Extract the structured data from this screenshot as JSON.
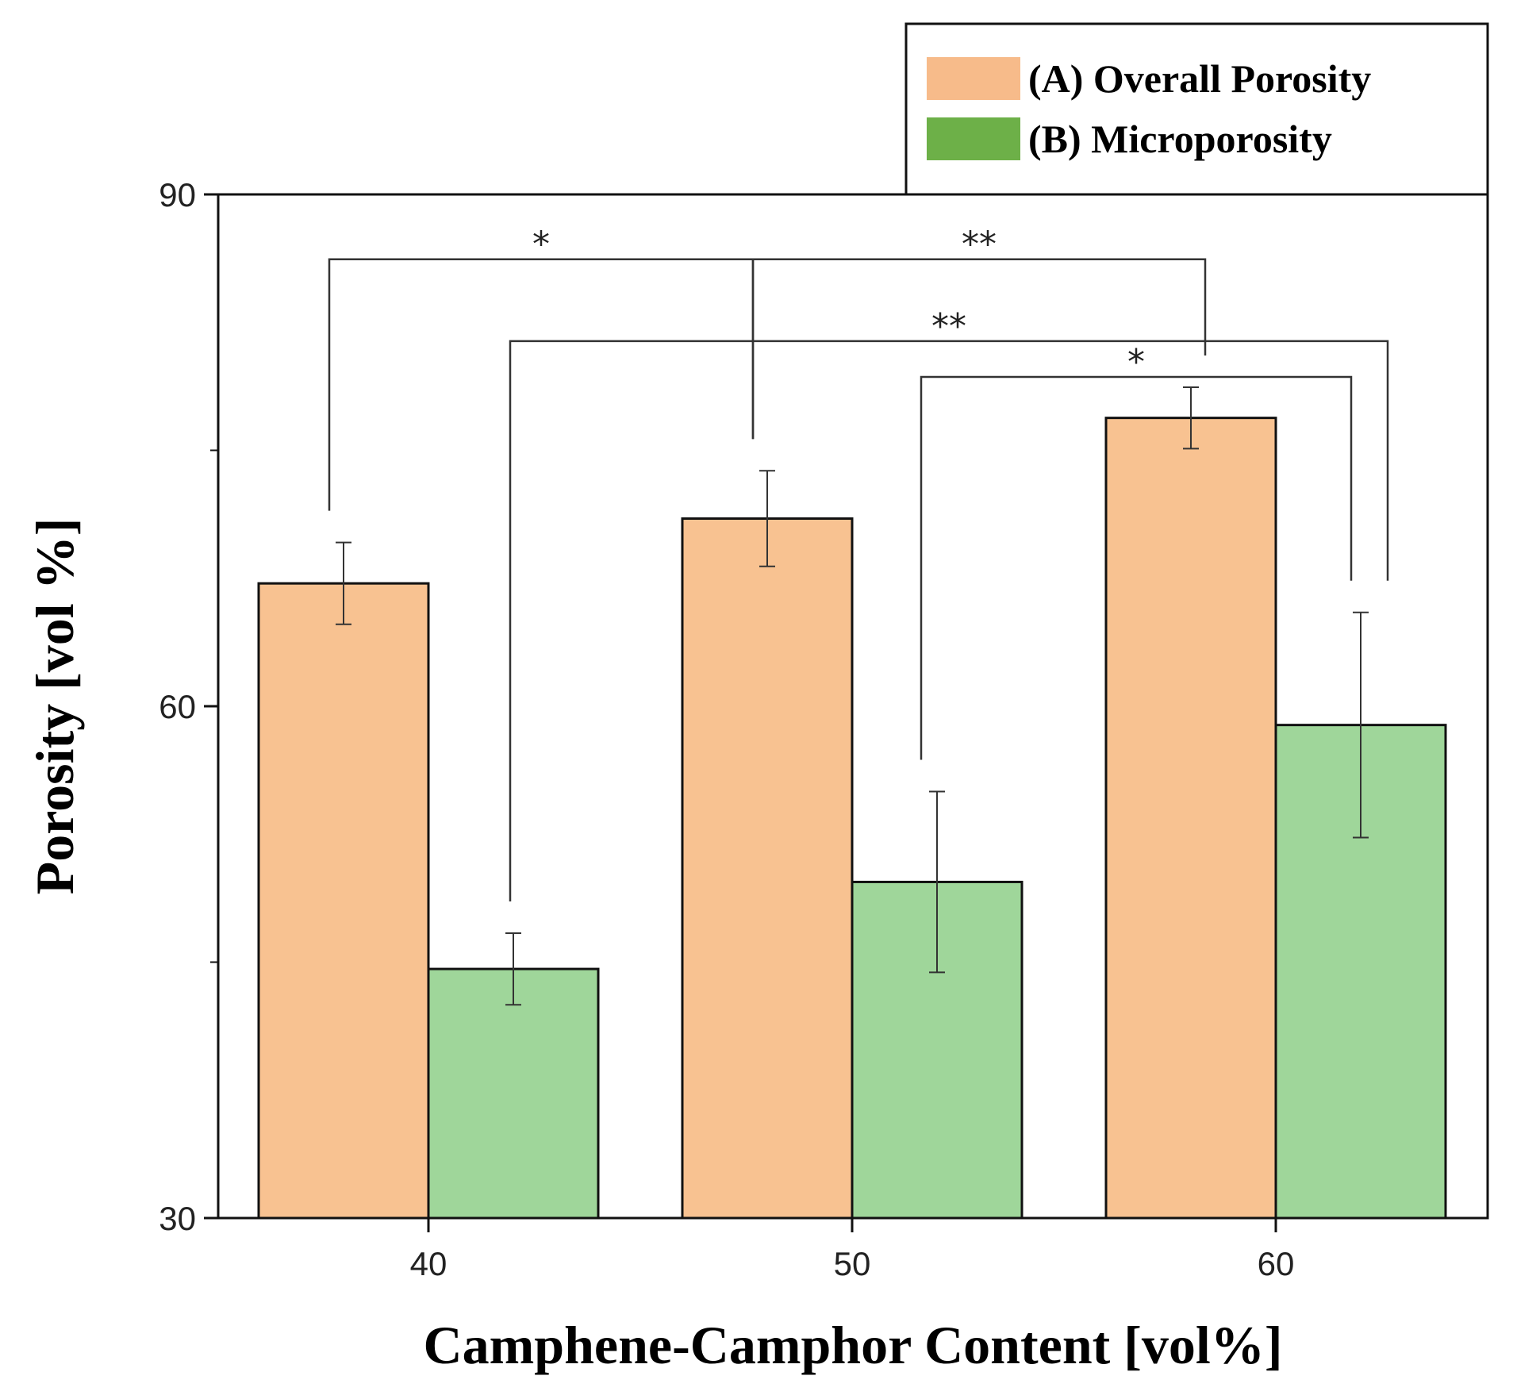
{
  "chart_data": {
    "type": "bar",
    "title": "",
    "xlabel": "Camphene-Camphor Content [vol%]",
    "ylabel": "Porosity [vol %]",
    "ylim": [
      30,
      90
    ],
    "yticks": [
      30,
      60,
      90
    ],
    "categories": [
      "40",
      "50",
      "60"
    ],
    "series": [
      {
        "name": "(A) Overall Porosity",
        "color": "#f8c291",
        "values": [
          67.2,
          71.0,
          76.9
        ],
        "errors": [
          2.4,
          2.8,
          1.8
        ]
      },
      {
        "name": "(B) Microporosity",
        "color": "#9fd69a",
        "values": [
          44.6,
          49.7,
          58.9
        ],
        "errors": [
          2.1,
          5.3,
          6.6
        ]
      }
    ],
    "legend_swatch_colors": [
      "#f7bb8a",
      "#6db048"
    ],
    "legend_position": "top-right",
    "significance": [
      {
        "label": "*",
        "from": "40-A",
        "to": "50-A"
      },
      {
        "label": "**",
        "from": "50-A",
        "to": "60-A"
      },
      {
        "label": "**",
        "from": "40-B",
        "to": "60-B"
      },
      {
        "label": "*",
        "from": "50-B",
        "to": "60-B"
      }
    ]
  }
}
